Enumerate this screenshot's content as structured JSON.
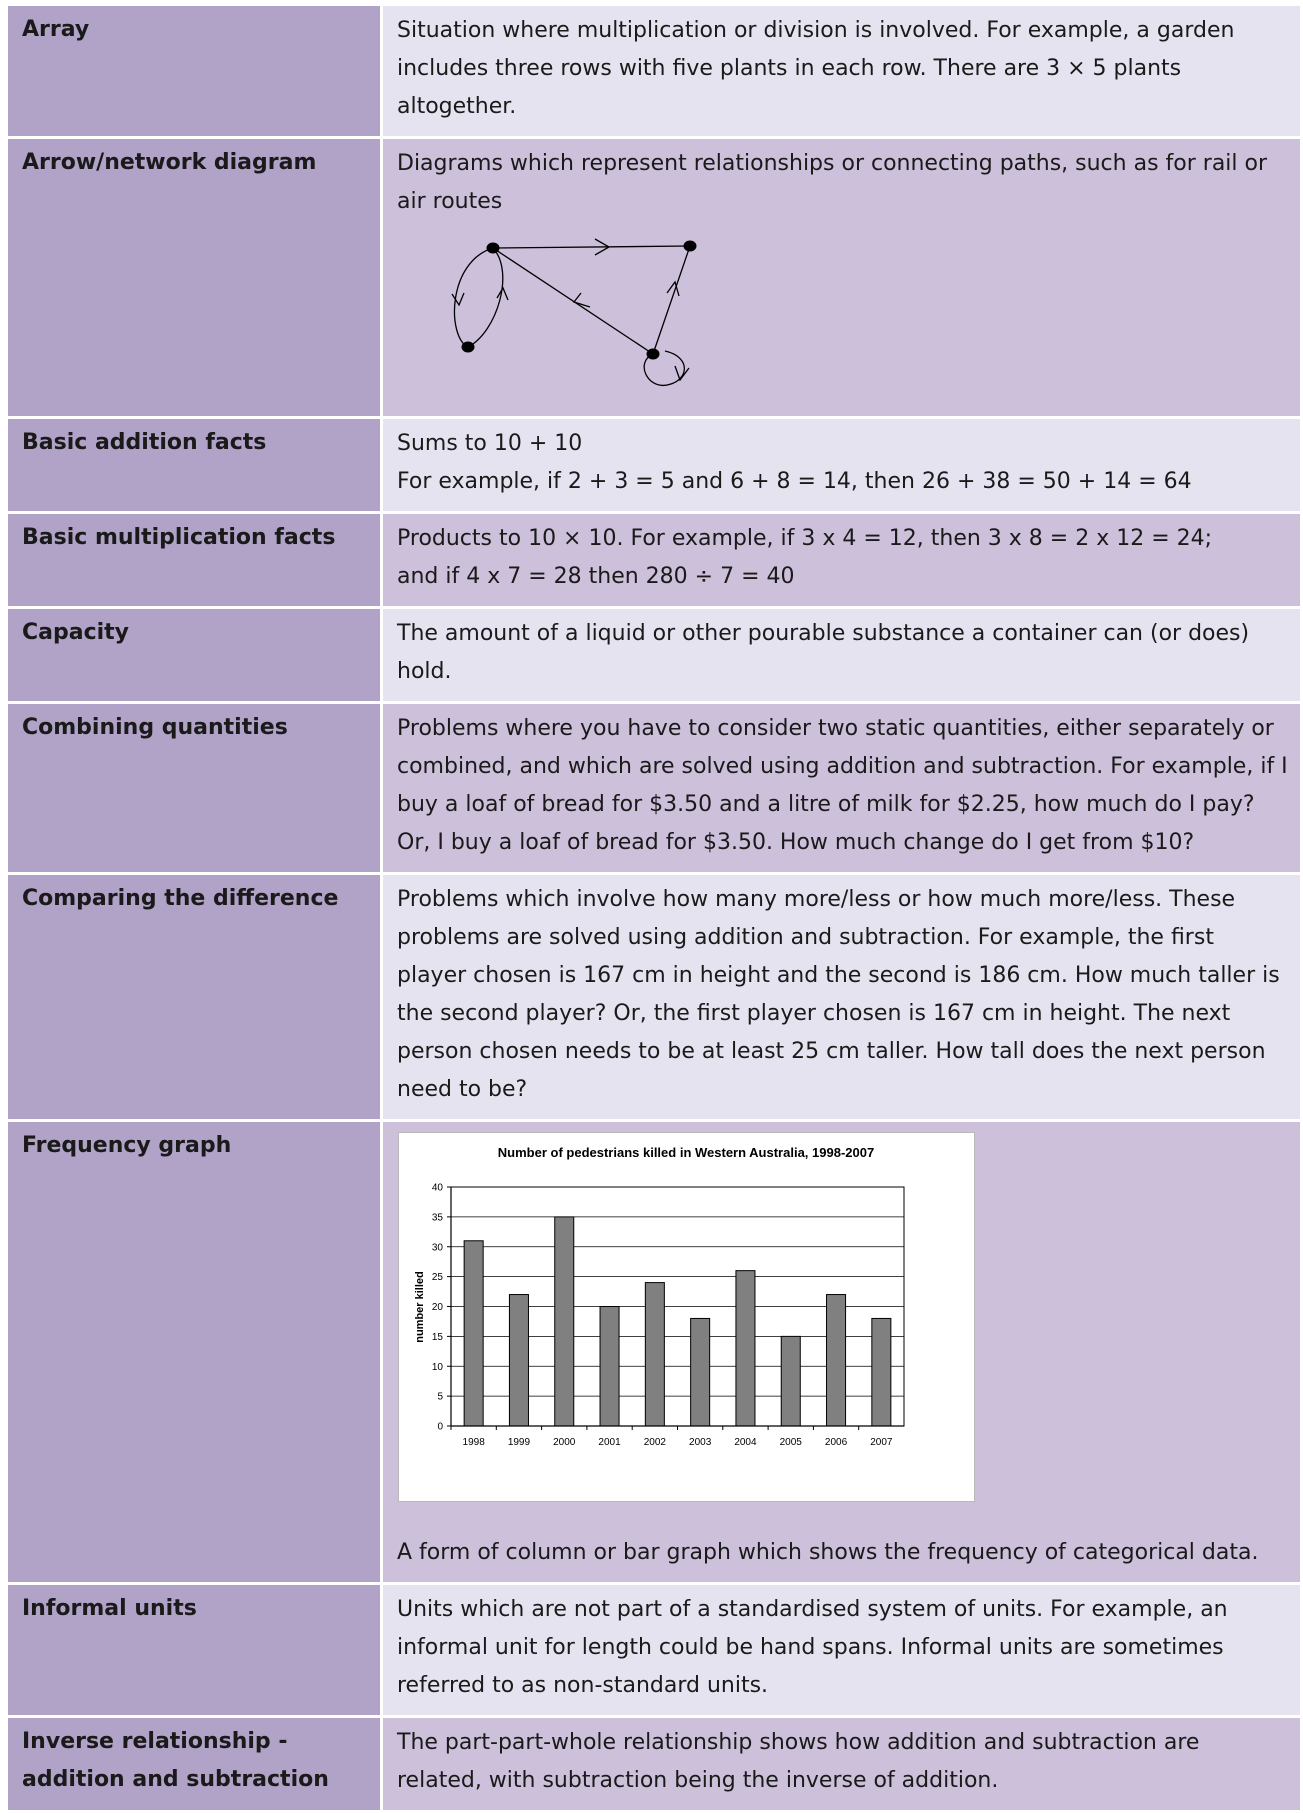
{
  "rows": [
    {
      "term": "Array",
      "definition": [
        "Situation where multiplication or division is involved. For example, a garden includes three rows with five plants in each row. There are 3 × 5 plants altogether."
      ]
    },
    {
      "term": "Arrow/network diagram",
      "definition": [
        "Diagrams which represent relationships or connecting paths, such as for rail or air routes"
      ]
    },
    {
      "term": "Basic addition facts",
      "definition": [
        "Sums to 10 + 10",
        "For example, if 2 + 3 = 5 and 6 + 8 = 14, then 26 + 38 = 50 + 14 = 64"
      ]
    },
    {
      "term": "Basic multiplication facts",
      "definition": [
        "Products to 10 × 10. For example, if 3 x 4 = 12, then 3 x 8 = 2 x 12 = 24;",
        "and if 4 x 7 = 28 then 280 ÷ 7 = 40"
      ]
    },
    {
      "term": "Capacity",
      "definition": [
        "The amount of a liquid or other pourable substance a container can (or does) hold."
      ]
    },
    {
      "term": "Combining quantities",
      "definition": [
        "Problems where you have to consider two static quantities, either separately or combined, and which are solved using addition and subtraction. For example, if I buy a loaf of bread for $3.50 and a litre of milk for $2.25, how much do I pay? Or, I buy a loaf of bread for $3.50. How much change do I get from $10?"
      ]
    },
    {
      "term": "Comparing the difference",
      "definition": [
        "Problems which involve how many more/less or how much more/less. These problems are solved using addition and subtraction. For example, the first player chosen is 167 cm in height and the second is 186 cm. How much taller is the second player? Or, the first player chosen is 167 cm in height. The next person chosen needs to be at least 25 cm taller. How tall does the next person need to be?"
      ]
    },
    {
      "term": "Frequency graph",
      "definition": [
        "A form of column or bar graph which shows the frequency of categorical data."
      ]
    },
    {
      "term": "Informal units",
      "definition": [
        "Units which are not part of a standardised system of units. For example, an informal unit for length could be hand spans. Informal units are sometimes referred to as non-standard units."
      ]
    },
    {
      "term": "Inverse relationship - addition and subtraction",
      "definition": [
        "The part-part-whole relationship shows how addition and subtraction are related, with subtraction being the inverse of addition."
      ]
    }
  ],
  "colors": {
    "term_bg": "#b1a2c8",
    "def_light_bg": "#e6e3f0",
    "def_dark_bg": "#ccc0da",
    "bar_fill": "#808080"
  },
  "chart_data": {
    "type": "bar",
    "title": "Number of pedestrians killed in Western Australia, 1998-2007",
    "xlabel": "",
    "ylabel": "number killed",
    "categories": [
      "1998",
      "1999",
      "2000",
      "2001",
      "2002",
      "2003",
      "2004",
      "2005",
      "2006",
      "2007"
    ],
    "values": [
      31,
      22,
      35,
      20,
      24,
      18,
      26,
      15,
      22,
      18
    ],
    "ylim": [
      0,
      40
    ],
    "yticks": [
      0,
      5,
      10,
      15,
      20,
      25,
      30,
      35,
      40
    ],
    "grid": true,
    "legend": "none"
  }
}
